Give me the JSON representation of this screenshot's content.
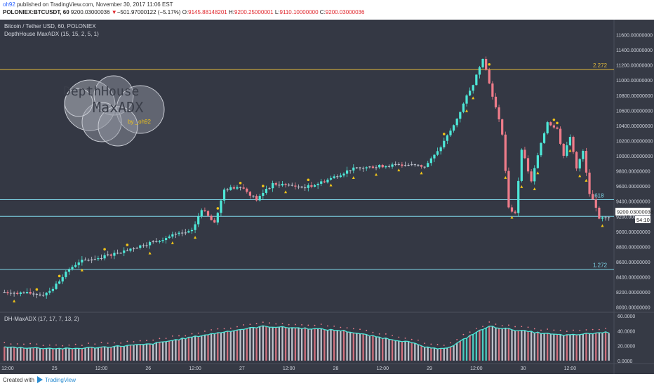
{
  "header": {
    "author": "oh92",
    "published_text": "published on TradingView.com, November 30, 2017 11:06 EST",
    "symbol": "POLONIEX:BTCUSDT, 60",
    "last": "9200.03000036",
    "change_arrow": "▼",
    "change": "−501.97000122 (−5.17%)",
    "o_label": "O:",
    "o": "9145.88148201",
    "h_label": "H:",
    "h": "9200.25000001",
    "l_label": "L:",
    "l": "9110.10000000",
    "c_label": "C:",
    "c": "9200.03000036"
  },
  "legend": {
    "title": "Bitcoin / Tether USD, 60, POLONIEX",
    "indicator": "DepthHouse MaxADX (15, 15, 2, 5, 1)",
    "sub_indicator": "DH-MaxADX (17, 17, 7, 13, 2)"
  },
  "watermark": {
    "line1": "DepthHouse",
    "line2": "MaxADX",
    "line3": "by _oh92"
  },
  "price_badge": "9200.03000036",
  "countdown_badge": "54:10",
  "footer": {
    "created_with": "Created with",
    "brand": "TradingView"
  },
  "colors": {
    "background": "#363a45",
    "bull": "#4ee8d8",
    "bear": "#ef7c8a",
    "neutral": "#c8ccd8",
    "marker": "#f0c419",
    "hline_blue": "#7fd6e8",
    "hline_yellow": "#e0b93c"
  },
  "chart_data": [
    {
      "type": "candlestick",
      "title": "Bitcoin / Tether USD, 60, POLONIEX",
      "ylim": [
        7950,
        11800
      ],
      "y_ticks": [
        "11600.00000000",
        "11400.00000000",
        "11200.00000000",
        "11000.00000000",
        "10800.00000000",
        "10600.00000000",
        "10400.00000000",
        "10200.00000000",
        "10000.00000000",
        "9800.00000000",
        "9600.00000000",
        "9400.00000000",
        "9200.00000000",
        "9000.00000000",
        "8800.00000000",
        "8600.00000000",
        "8400.00000000",
        "8200.00000000",
        "8000.00000000"
      ],
      "x_ticks": [
        "12:00",
        "25",
        "12:00",
        "26",
        "12:00",
        "27",
        "12:00",
        "28",
        "12:00",
        "29",
        "12:00",
        "30",
        "12:00"
      ],
      "horizontal_levels": [
        {
          "value": 11140,
          "label": "2.272",
          "color": "hline_yellow"
        },
        {
          "value": 9420,
          "label": ".618",
          "color": "hline_blue"
        },
        {
          "value": 9200,
          "label": "",
          "color": "hline_blue"
        },
        {
          "value": 8500,
          "label": "1.272",
          "color": "hline_blue"
        }
      ],
      "anchors": [
        [
          0,
          8200
        ],
        [
          8,
          8180
        ],
        [
          12,
          8170
        ],
        [
          15,
          8250
        ],
        [
          20,
          8500
        ],
        [
          23,
          8600
        ],
        [
          30,
          8660
        ],
        [
          38,
          8760
        ],
        [
          45,
          8850
        ],
        [
          53,
          8960
        ],
        [
          58,
          9000
        ],
        [
          61,
          9300
        ],
        [
          65,
          9100
        ],
        [
          68,
          9550
        ],
        [
          73,
          9600
        ],
        [
          78,
          9420
        ],
        [
          83,
          9630
        ],
        [
          88,
          9610
        ],
        [
          93,
          9580
        ],
        [
          98,
          9650
        ],
        [
          103,
          9740
        ],
        [
          107,
          9820
        ],
        [
          113,
          9850
        ],
        [
          118,
          9870
        ],
        [
          125,
          9880
        ],
        [
          130,
          9860
        ],
        [
          134,
          10050
        ],
        [
          139,
          10400
        ],
        [
          143,
          10780
        ],
        [
          145,
          10950
        ],
        [
          148,
          11300
        ],
        [
          151,
          10800
        ],
        [
          154,
          10300
        ],
        [
          156,
          9300
        ],
        [
          158,
          9250
        ],
        [
          160,
          10100
        ],
        [
          163,
          9650
        ],
        [
          165,
          10000
        ],
        [
          168,
          10450
        ],
        [
          171,
          10350
        ],
        [
          173,
          10000
        ],
        [
          175,
          10250
        ],
        [
          177,
          9850
        ],
        [
          179,
          10050
        ],
        [
          181,
          9500
        ],
        [
          183,
          9330
        ],
        [
          184,
          9150
        ],
        [
          186,
          9200
        ]
      ]
    },
    {
      "type": "bar",
      "title": "DH-MaxADX (17, 17, 7, 13, 2)",
      "ylim": [
        -2,
        62
      ],
      "y_ticks": [
        "60.0000",
        "40.0000",
        "20.0000",
        "0.0000"
      ],
      "anchors": [
        [
          0,
          18
        ],
        [
          10,
          17
        ],
        [
          20,
          16
        ],
        [
          30,
          18
        ],
        [
          45,
          22
        ],
        [
          60,
          33
        ],
        [
          70,
          40
        ],
        [
          80,
          46
        ],
        [
          95,
          43
        ],
        [
          105,
          40
        ],
        [
          115,
          32
        ],
        [
          125,
          25
        ],
        [
          132,
          16
        ],
        [
          138,
          18
        ],
        [
          145,
          36
        ],
        [
          150,
          46
        ],
        [
          160,
          40
        ],
        [
          170,
          35
        ],
        [
          175,
          34
        ],
        [
          180,
          36
        ],
        [
          186,
          38
        ]
      ]
    }
  ]
}
